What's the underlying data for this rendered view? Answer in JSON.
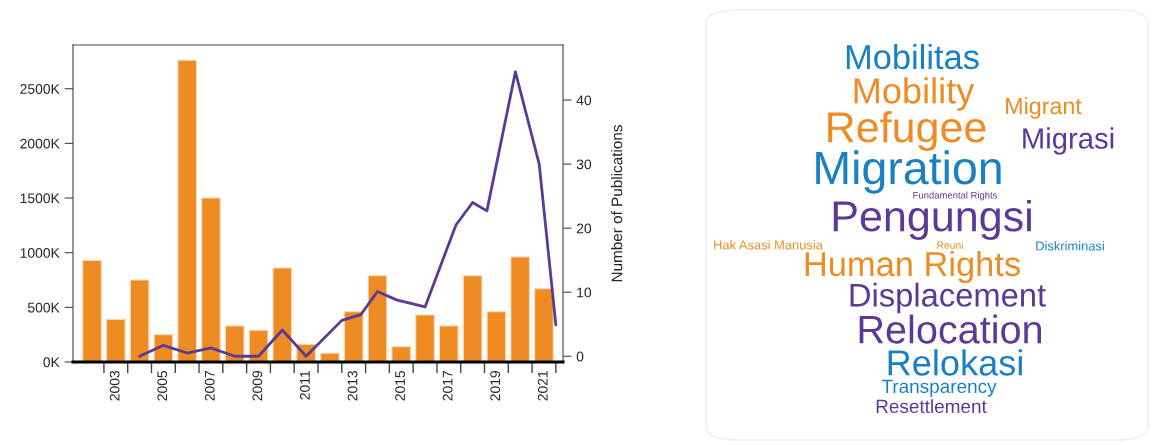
{
  "chart_data": [
    {
      "type": "bar",
      "x": [
        2002,
        2003,
        2004,
        2005,
        2006,
        2007,
        2008,
        2009,
        2010,
        2011,
        2012,
        2013,
        2014,
        2015,
        2016,
        2017,
        2018,
        2019,
        2020,
        2021
      ],
      "series": [
        {
          "type": "bar",
          "color": "#ee8c23",
          "values": [
            930,
            390,
            750,
            250,
            2760,
            1500,
            330,
            290,
            860,
            160,
            80,
            460,
            790,
            140,
            430,
            330,
            790,
            460,
            960,
            670
          ]
        },
        {
          "type": "line",
          "axis": "y2",
          "color": "#5b3a96",
          "x": [
            2004,
            2005,
            2006,
            2007,
            2008,
            2009,
            2010,
            2011,
            2012.5,
            2013.3,
            2014,
            2014.8,
            2016,
            2017.3,
            2018,
            2018.6,
            2019.8,
            2020.8,
            2021.5
          ],
          "values": [
            0,
            1.7,
            0.5,
            1.3,
            0,
            0,
            4.1,
            0,
            5.6,
            6.5,
            10.1,
            8.8,
            7.7,
            20.5,
            24,
            22.7,
            44.4,
            30,
            4.9
          ]
        }
      ],
      "xlim": [
        2001.2,
        2021.8
      ],
      "xticks": [
        {
          "value": 2002.5,
          "label": null
        },
        2003,
        {
          "value": 2003.5,
          "label": null
        },
        {
          "value": 2004.5,
          "label": null
        },
        2005,
        {
          "value": 2005.5,
          "label": null
        },
        {
          "value": 2006.5,
          "label": null
        },
        2007,
        {
          "value": 2007.5,
          "label": null
        },
        {
          "value": 2008.5,
          "label": null
        },
        2009,
        {
          "value": 2009.5,
          "label": null
        },
        {
          "value": 2010.5,
          "label": null
        },
        2011,
        {
          "value": 2011.5,
          "label": null
        },
        {
          "value": 2012.5,
          "label": null
        },
        2013,
        {
          "value": 2013.5,
          "label": null
        },
        {
          "value": 2014.5,
          "label": null
        },
        2015,
        {
          "value": 2015.5,
          "label": null
        },
        {
          "value": 2016.5,
          "label": null
        },
        2017,
        {
          "value": 2017.5,
          "label": null
        },
        {
          "value": 2018.5,
          "label": null
        },
        2019,
        {
          "value": 2019.5,
          "label": null
        },
        {
          "value": 2020.5,
          "label": null
        },
        2021,
        {
          "value": 2021.5,
          "label": null
        }
      ],
      "ylim": [
        0,
        2900
      ],
      "yticks": [
        {
          "value": 0,
          "label": "0K"
        },
        {
          "value": 500,
          "label": "500K"
        },
        {
          "value": 1000,
          "label": "1000K"
        },
        {
          "value": 1500,
          "label": "1500K"
        },
        {
          "value": 2000,
          "label": "2000K"
        },
        {
          "value": 2500,
          "label": "2500K"
        }
      ],
      "y2lim": [
        -0.9,
        48.6
      ],
      "y2ticks": [
        0,
        10,
        20,
        30,
        40
      ],
      "y2label": "Number of Publications",
      "grid": false,
      "legend": false
    },
    {
      "type": "other",
      "annotations": [
        "Mobilitas",
        "Mobility",
        "Migrant",
        "Refugee",
        "Migrasi",
        "Migration",
        "Fundamental Rights",
        "Pengungsi",
        "Hak Asasi Manusia",
        "Reuni",
        "Diskriminasi",
        "Human Rights",
        "Displacement",
        "Relocation",
        "Relokasi",
        "Transparency",
        "Resettlement"
      ],
      "colors": [
        "#1a80c4",
        "#ee8c23",
        "#ee8c23",
        "#ee8c23",
        "#5b3a96",
        "#1a80c4",
        "#5b3a96",
        "#5b3a96",
        "#ee8c23",
        "#ee8c23",
        "#1a80c4",
        "#ee8c23",
        "#5b3a96",
        "#5b3a96",
        "#1a80c4",
        "#1a80c4",
        "#5b3a96"
      ]
    }
  ]
}
